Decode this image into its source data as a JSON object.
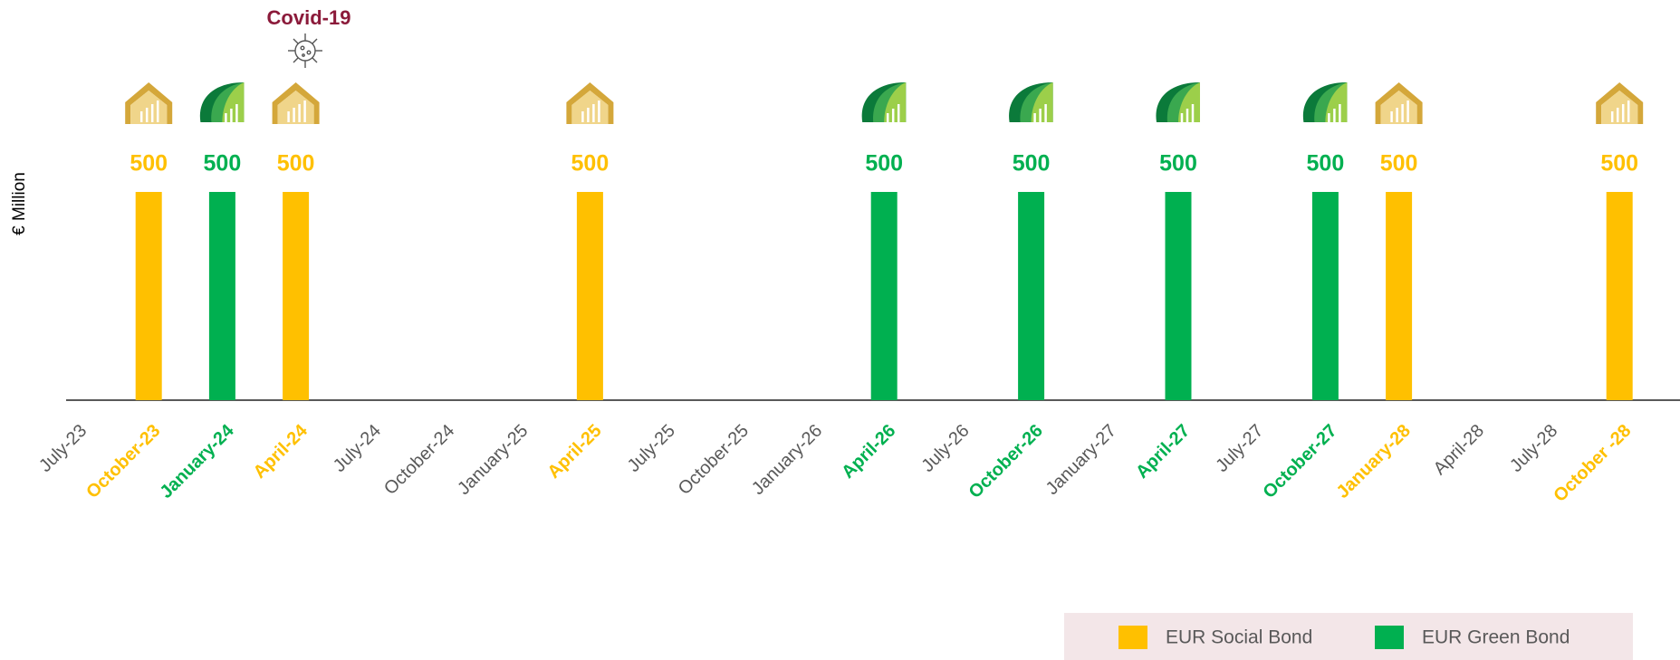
{
  "chart_data": {
    "type": "bar",
    "y_label": "€ Million",
    "annotation": "Covid-19",
    "categories": [
      "July-23",
      "October-23",
      "January-24",
      "April-24",
      "July-24",
      "October-24",
      "January-25",
      "April-25",
      "July-25",
      "October-25",
      "January-26",
      "April-26",
      "July-26",
      "October-26",
      "January-27",
      "April-27",
      "July-27",
      "October-27",
      "January-28",
      "April-28",
      "July-28",
      "October -28"
    ],
    "series": [
      {
        "name": "EUR Social Bond",
        "color": "#ffc000",
        "values": [
          null,
          500,
          null,
          500,
          null,
          null,
          null,
          500,
          null,
          null,
          null,
          null,
          null,
          null,
          null,
          null,
          null,
          null,
          500,
          null,
          null,
          500
        ]
      },
      {
        "name": "EUR Green Bond",
        "color": "#00b050",
        "values": [
          null,
          null,
          500,
          null,
          null,
          null,
          null,
          null,
          null,
          null,
          null,
          500,
          null,
          500,
          null,
          500,
          null,
          500,
          null,
          null,
          null,
          null
        ]
      }
    ],
    "ylim": [
      0,
      500
    ]
  }
}
